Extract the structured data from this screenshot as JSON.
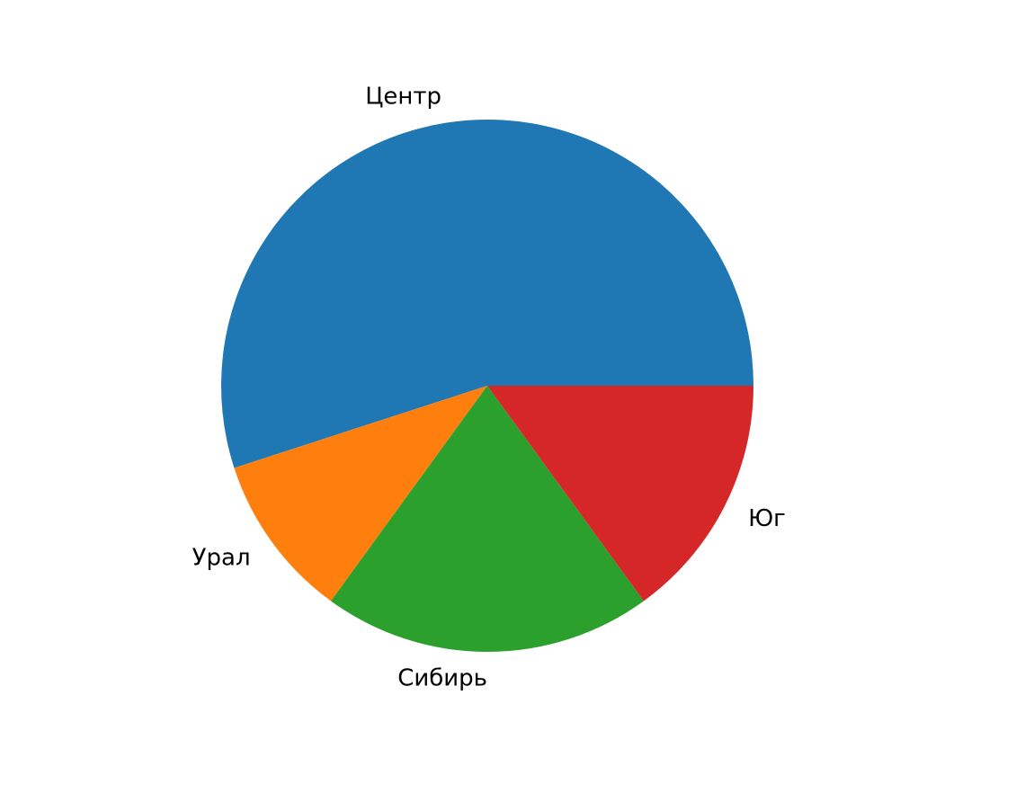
{
  "chart_data": {
    "type": "pie",
    "title": "",
    "categories": [
      "Центр",
      "Урал",
      "Сибирь",
      "Юг"
    ],
    "values": [
      55,
      10,
      20,
      15
    ],
    "colors": [
      "#1f77b4",
      "#ff7f0e",
      "#2ca02c",
      "#d62728"
    ],
    "start_angle_deg": 0,
    "direction": "counterclockwise",
    "legend": "none"
  }
}
